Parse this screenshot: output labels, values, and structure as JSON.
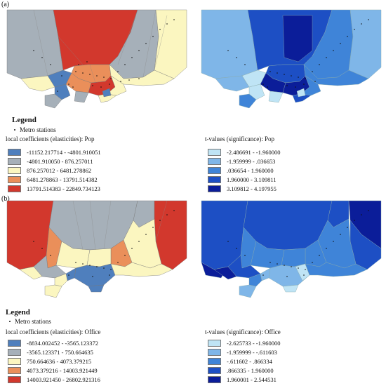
{
  "panels": {
    "a": {
      "label": "(a)",
      "left_caption": "local coefficients (elasticities):  Pop",
      "right_caption": "t-values (significance):  Pop",
      "coef_classes": [
        {
          "range": "-11152.217714 - -4801.910051",
          "color": "#4f7fbd"
        },
        {
          "range": "-4801.910050 - 876.257011",
          "color": "#a6b0b9"
        },
        {
          "range": "876.257012 - 6481.278862",
          "color": "#fbf6c0"
        },
        {
          "range": "6481.278863 - 13791.514382",
          "color": "#ea8f5a"
        },
        {
          "range": "13791.514383 - 22849.734123",
          "color": "#d2382d"
        }
      ],
      "t_classes": [
        {
          "range": "-2.486691 - -1.960000",
          "color": "#bfe4f5"
        },
        {
          "range": "-1.959999 - .036653",
          "color": "#7fb6e8"
        },
        {
          "range": ".036654 - 1.960000",
          "color": "#3f84d8"
        },
        {
          "range": "1.960000 - 3.109811",
          "color": "#1d4fc4"
        },
        {
          "range": "3.109812 - 4.197955",
          "color": "#0b1d99"
        }
      ]
    },
    "b": {
      "label": "(b)",
      "left_caption": "local coefficients (elasticities):  Office",
      "right_caption": "t-values (significance):  Office",
      "coef_classes": [
        {
          "range": "-8834.002452 - -3565.123372",
          "color": "#4f7fbd"
        },
        {
          "range": "-3565.123371 - 750.664635",
          "color": "#a6b0b9"
        },
        {
          "range": "750.664636 - 4073.379215",
          "color": "#fbf6c0"
        },
        {
          "range": "4073.379216 - 14003.921449",
          "color": "#ea8f5a"
        },
        {
          "range": "14003.921450 - 26802.921316",
          "color": "#d2382d"
        }
      ],
      "t_classes": [
        {
          "range": "-2.625733 - -1.960000",
          "color": "#bfe4f5"
        },
        {
          "range": "-1.959999 - -.611603",
          "color": "#7fb6e8"
        },
        {
          "range": "-.611602 - .866334",
          "color": "#3f84d8"
        },
        {
          "range": ".866335 - 1.960000",
          "color": "#1d4fc4"
        },
        {
          "range": "1.960001 - 2.544531",
          "color": "#0b1d99"
        }
      ]
    }
  },
  "legend": {
    "title": "Legend",
    "metro_label": "Metro stations"
  }
}
